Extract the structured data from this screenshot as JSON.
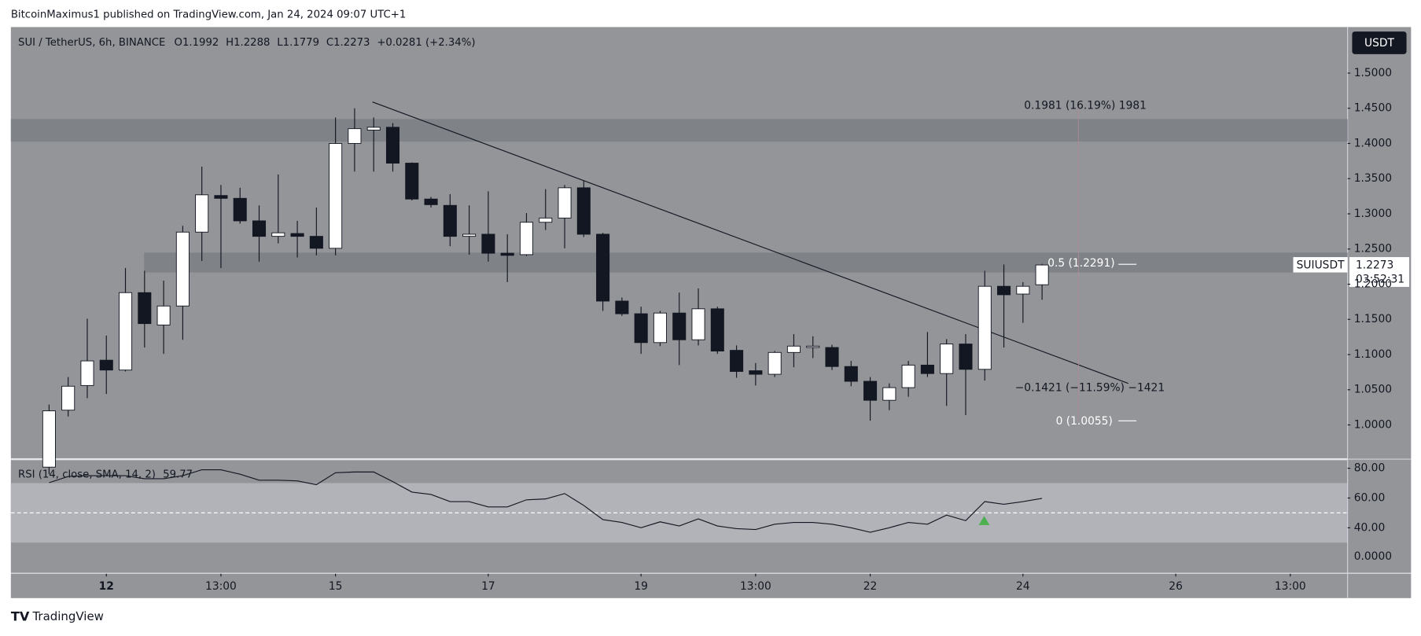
{
  "header": "BitcoinMaximus1 published on TradingView.com, Jan 24, 2024 09:07 UTC+1",
  "footer": "TradingView",
  "chart_data": [
    {
      "type": "candlestick",
      "title": "SUI / TetherUS, 6h, BINANCE",
      "legend_labels": [
        "O",
        "H",
        "L",
        "C"
      ],
      "change_label": "+0.0281 (+2.34%)",
      "currency": "USDT",
      "symbol": "SUIUSDT",
      "countdown": "03:52:31",
      "up_color": "#ffffff",
      "down_color": "#131722",
      "x": [
        0,
        1,
        2,
        3,
        4,
        5,
        6,
        7,
        8,
        9,
        10,
        11,
        12,
        13,
        14,
        15,
        16,
        17,
        18,
        19,
        20,
        21,
        22,
        23,
        24,
        25,
        26,
        27,
        28,
        29,
        30,
        31,
        32,
        33,
        34,
        35,
        36,
        37,
        38,
        39,
        40,
        41,
        42,
        43,
        44,
        45,
        46,
        47,
        48,
        49,
        50,
        51,
        52
      ],
      "open": [
        0.94,
        1.021,
        1.056,
        1.092,
        1.078,
        1.188,
        1.142,
        1.169,
        1.274,
        1.326,
        1.322,
        1.29,
        1.268,
        1.272,
        1.268,
        1.251,
        1.4,
        1.419,
        1.423,
        1.372,
        1.321,
        1.312,
        1.268,
        1.271,
        1.244,
        1.242,
        1.288,
        1.294,
        1.337,
        1.271,
        1.176,
        1.158,
        1.117,
        1.159,
        1.121,
        1.165,
        1.106,
        1.077,
        1.072,
        1.103,
        1.111,
        1.11,
        1.083,
        1.062,
        1.035,
        1.053,
        1.085,
        1.073,
        1.115,
        1.079,
        1.197,
        1.186,
        1.1992
      ],
      "high": [
        1.029,
        1.068,
        1.151,
        1.127,
        1.223,
        1.219,
        1.205,
        1.283,
        1.367,
        1.341,
        1.337,
        1.312,
        1.356,
        1.29,
        1.309,
        1.437,
        1.45,
        1.437,
        1.429,
        1.373,
        1.324,
        1.328,
        1.312,
        1.332,
        1.271,
        1.301,
        1.335,
        1.341,
        1.347,
        1.273,
        1.181,
        1.168,
        1.162,
        1.188,
        1.194,
        1.168,
        1.113,
        1.088,
        1.105,
        1.129,
        1.126,
        1.114,
        1.091,
        1.068,
        1.059,
        1.091,
        1.132,
        1.122,
        1.129,
        1.219,
        1.228,
        1.203,
        1.2288
      ],
      "low": [
        0.93,
        1.012,
        1.038,
        1.044,
        1.076,
        1.11,
        1.101,
        1.121,
        1.233,
        1.223,
        1.286,
        1.232,
        1.258,
        1.238,
        1.241,
        1.241,
        1.36,
        1.36,
        1.36,
        1.319,
        1.309,
        1.254,
        1.242,
        1.232,
        1.203,
        1.24,
        1.277,
        1.251,
        1.267,
        1.162,
        1.155,
        1.101,
        1.112,
        1.085,
        1.113,
        1.101,
        1.067,
        1.056,
        1.068,
        1.082,
        1.095,
        1.078,
        1.055,
        1.006,
        1.021,
        1.04,
        1.068,
        1.027,
        1.014,
        1.063,
        1.11,
        1.145,
        1.1779
      ],
      "close": [
        1.02,
        1.055,
        1.091,
        1.078,
        1.188,
        1.144,
        1.169,
        1.274,
        1.327,
        1.322,
        1.29,
        1.268,
        1.273,
        1.268,
        1.251,
        1.4,
        1.421,
        1.423,
        1.372,
        1.321,
        1.313,
        1.268,
        1.271,
        1.244,
        1.241,
        1.288,
        1.294,
        1.337,
        1.271,
        1.176,
        1.158,
        1.117,
        1.159,
        1.121,
        1.165,
        1.105,
        1.076,
        1.072,
        1.103,
        1.112,
        1.112,
        1.083,
        1.062,
        1.035,
        1.053,
        1.085,
        1.073,
        1.115,
        1.079,
        1.197,
        1.185,
        1.197,
        1.2273
      ],
      "xlim": [
        -2,
        68
      ],
      "ylim": [
        0.9526,
        1.5654
      ],
      "yticks": [
        {
          "value": 1.0,
          "label": "1.0000"
        },
        {
          "value": 1.05,
          "label": "1.0500"
        },
        {
          "value": 1.1,
          "label": "1.1000"
        },
        {
          "value": 1.15,
          "label": "1.1500"
        },
        {
          "value": 1.2,
          "label": "1.2000"
        },
        {
          "value": 1.25,
          "label": "1.2500"
        },
        {
          "value": 1.3,
          "label": "1.3000"
        },
        {
          "value": 1.35,
          "label": "1.3500"
        },
        {
          "value": 1.4,
          "label": "1.4000"
        },
        {
          "value": 1.45,
          "label": "1.4500"
        },
        {
          "value": 1.5,
          "label": "1.5000"
        }
      ],
      "xticks": [
        {
          "value": 3,
          "label": "12"
        },
        {
          "value": 9,
          "label": "13:00"
        },
        {
          "value": 15,
          "label": "15"
        },
        {
          "value": 23,
          "label": "17"
        },
        {
          "value": 31,
          "label": "19"
        },
        {
          "value": 37,
          "label": "13:00"
        },
        {
          "value": 43,
          "label": "22"
        },
        {
          "value": 51,
          "label": "24"
        },
        {
          "value": 59,
          "label": "26"
        },
        {
          "value": 65,
          "label": "13:00"
        }
      ],
      "annotations": [
        "0.1981 (16.19%) 1981",
        "0.5 (1.2291)",
        "−0.1421 (−11.59%) −1421",
        "0 (1.0055)"
      ]
    },
    {
      "type": "line",
      "title": "RSI (14, close, SMA, 14, 2)",
      "color": "#131722",
      "x": [
        0,
        1,
        2,
        3,
        4,
        5,
        6,
        7,
        8,
        9,
        10,
        11,
        12,
        13,
        14,
        15,
        16,
        17,
        18,
        19,
        20,
        21,
        22,
        23,
        24,
        25,
        26,
        27,
        28,
        29,
        30,
        31,
        32,
        33,
        34,
        35,
        36,
        37,
        38,
        39,
        40,
        41,
        42,
        43,
        44,
        45,
        46,
        47,
        48,
        49,
        50,
        51,
        52
      ],
      "values": [
        70.3,
        74.5,
        75,
        75,
        75,
        73,
        73,
        75,
        79,
        79,
        76,
        72,
        72,
        71.5,
        69,
        77,
        77.5,
        77.5,
        71,
        64,
        62.4,
        57.6,
        57.6,
        54,
        54,
        58.8,
        59.4,
        63,
        55,
        45.5,
        43.6,
        40,
        44,
        41.2,
        46,
        41.2,
        39.4,
        38.8,
        42.4,
        43.6,
        43.6,
        42.4,
        40,
        37,
        40,
        43.6,
        42.4,
        48.5,
        44.8,
        57.6,
        55.8,
        57.6,
        59.77
      ],
      "xlim": [
        -2,
        68
      ],
      "ylim": [
        9.7,
        85.5
      ],
      "yticks": [
        {
          "value": 40,
          "label": "40.00"
        },
        {
          "value": 60,
          "label": "60.00"
        },
        {
          "value": 80,
          "label": "80.00"
        }
      ],
      "extra_axis_label": "0.0000"
    }
  ]
}
